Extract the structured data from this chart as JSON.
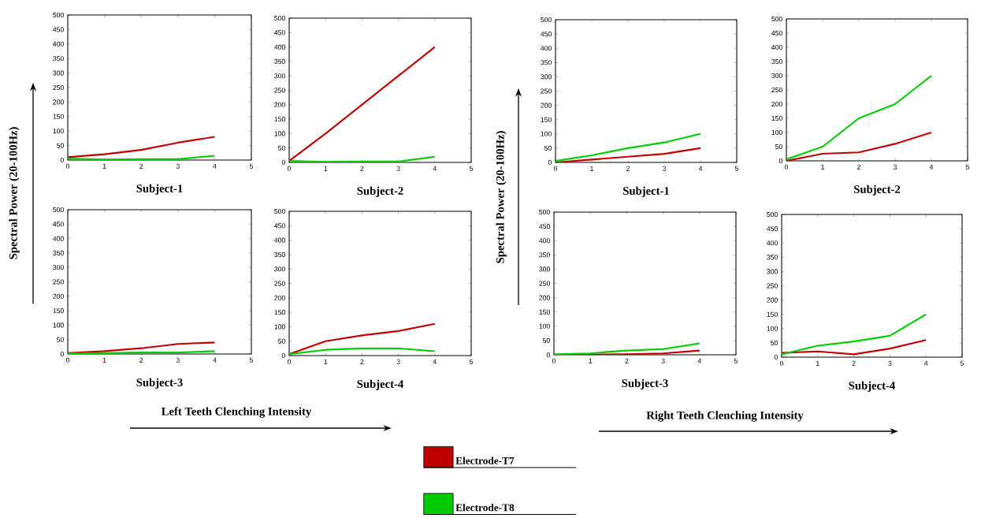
{
  "chart_data": [
    {
      "type": "line",
      "xlabel": "Subject-1",
      "ylabel": "Spectral Power (20-100Hz)",
      "x": [
        0,
        1,
        2,
        3,
        4
      ],
      "xlim": [
        0,
        5
      ],
      "xticks": [
        0,
        1,
        2,
        3,
        4,
        5
      ],
      "ylim": [
        0,
        500
      ],
      "yticks": [
        0,
        50,
        100,
        150,
        200,
        250,
        300,
        350,
        400,
        450,
        500
      ],
      "series": [
        {
          "color": "#c00000",
          "values": [
            10,
            20,
            35,
            60,
            80
          ]
        },
        {
          "color": "#00cc00",
          "values": [
            5,
            2,
            3,
            3,
            15
          ]
        }
      ]
    },
    {
      "type": "line",
      "xlabel": "Subject-2",
      "x": [
        0,
        1,
        2,
        3,
        4
      ],
      "xlim": [
        0,
        5
      ],
      "xticks": [
        0,
        1,
        2,
        3,
        4,
        5
      ],
      "ylim": [
        0,
        500
      ],
      "yticks": [
        0,
        50,
        100,
        150,
        200,
        250,
        300,
        350,
        400,
        450,
        500
      ],
      "series": [
        {
          "color": "#c00000",
          "values": [
            5,
            100,
            200,
            300,
            400
          ]
        },
        {
          "color": "#00cc00",
          "values": [
            5,
            2,
            3,
            3,
            20
          ]
        }
      ]
    },
    {
      "type": "line",
      "xlabel": "Subject-3",
      "annotations": [
        "Left Teeth Clenching Intensity"
      ],
      "x": [
        0,
        1,
        2,
        3,
        4
      ],
      "xlim": [
        0,
        5
      ],
      "xticks": [
        0,
        1,
        2,
        3,
        4,
        5
      ],
      "ylim": [
        0,
        500
      ],
      "yticks": [
        0,
        50,
        100,
        150,
        200,
        250,
        300,
        350,
        400,
        450,
        500
      ],
      "series": [
        {
          "color": "#c00000",
          "values": [
            3,
            10,
            20,
            35,
            40
          ]
        },
        {
          "color": "#00cc00",
          "values": [
            2,
            3,
            5,
            5,
            10
          ]
        }
      ]
    },
    {
      "type": "line",
      "xlabel": "Subject-4",
      "x": [
        0,
        1,
        2,
        3,
        4
      ],
      "xlim": [
        0,
        5
      ],
      "xticks": [
        0,
        1,
        2,
        3,
        4,
        5
      ],
      "ylim": [
        0,
        500
      ],
      "yticks": [
        0,
        50,
        100,
        150,
        200,
        250,
        300,
        350,
        400,
        450,
        500
      ],
      "series": [
        {
          "color": "#c00000",
          "values": [
            5,
            50,
            70,
            85,
            110
          ]
        },
        {
          "color": "#00cc00",
          "values": [
            5,
            20,
            25,
            25,
            15
          ]
        }
      ]
    },
    {
      "type": "line",
      "xlabel": "Subject-1",
      "ylabel": "Spectral Power (20-100Hz)",
      "x": [
        0,
        1,
        2,
        3,
        4
      ],
      "xlim": [
        0,
        5
      ],
      "xticks": [
        0,
        1,
        2,
        3,
        4,
        5
      ],
      "ylim": [
        0,
        500
      ],
      "yticks": [
        0,
        50,
        100,
        150,
        200,
        250,
        300,
        350,
        400,
        450,
        500
      ],
      "series": [
        {
          "color": "#c00000",
          "values": [
            0,
            10,
            20,
            30,
            50
          ]
        },
        {
          "color": "#00cc00",
          "values": [
            5,
            25,
            50,
            70,
            100
          ]
        }
      ]
    },
    {
      "type": "line",
      "xlabel": "Subject-2",
      "x": [
        0,
        1,
        2,
        3,
        4
      ],
      "xlim": [
        0,
        5
      ],
      "xticks": [
        0,
        1,
        2,
        3,
        4,
        5
      ],
      "ylim": [
        0,
        500
      ],
      "yticks": [
        0,
        50,
        100,
        150,
        200,
        250,
        300,
        350,
        400,
        450,
        500
      ],
      "series": [
        {
          "color": "#c00000",
          "values": [
            0,
            25,
            30,
            60,
            100
          ]
        },
        {
          "color": "#00cc00",
          "values": [
            5,
            50,
            150,
            200,
            300
          ]
        }
      ]
    },
    {
      "type": "line",
      "xlabel": "Subject-3",
      "annotations": [
        "Right Teeth Clenching Intensity"
      ],
      "x": [
        0,
        1,
        2,
        3,
        4
      ],
      "xlim": [
        0,
        5
      ],
      "xticks": [
        0,
        1,
        2,
        3,
        4,
        5
      ],
      "ylim": [
        0,
        500
      ],
      "yticks": [
        0,
        50,
        100,
        150,
        200,
        250,
        300,
        350,
        400,
        450,
        500
      ],
      "series": [
        {
          "color": "#c00000",
          "values": [
            0,
            1,
            2,
            5,
            15
          ]
        },
        {
          "color": "#00cc00",
          "values": [
            2,
            5,
            15,
            20,
            40
          ]
        }
      ]
    },
    {
      "type": "line",
      "xlabel": "Subject-4",
      "legend": "bottom",
      "x": [
        0,
        1,
        2,
        3,
        4
      ],
      "xlim": [
        0,
        5
      ],
      "xticks": [
        0,
        1,
        2,
        3,
        4,
        5
      ],
      "ylim": [
        0,
        500
      ],
      "yticks": [
        0,
        50,
        100,
        150,
        200,
        250,
        300,
        350,
        400,
        450,
        500
      ],
      "series": [
        {
          "name": "Electrode-T7",
          "color": "#c00000",
          "values": [
            15,
            20,
            10,
            30,
            60
          ]
        },
        {
          "name": "Electrode-T8",
          "color": "#00cc00",
          "values": [
            10,
            40,
            55,
            75,
            150
          ]
        }
      ]
    }
  ]
}
